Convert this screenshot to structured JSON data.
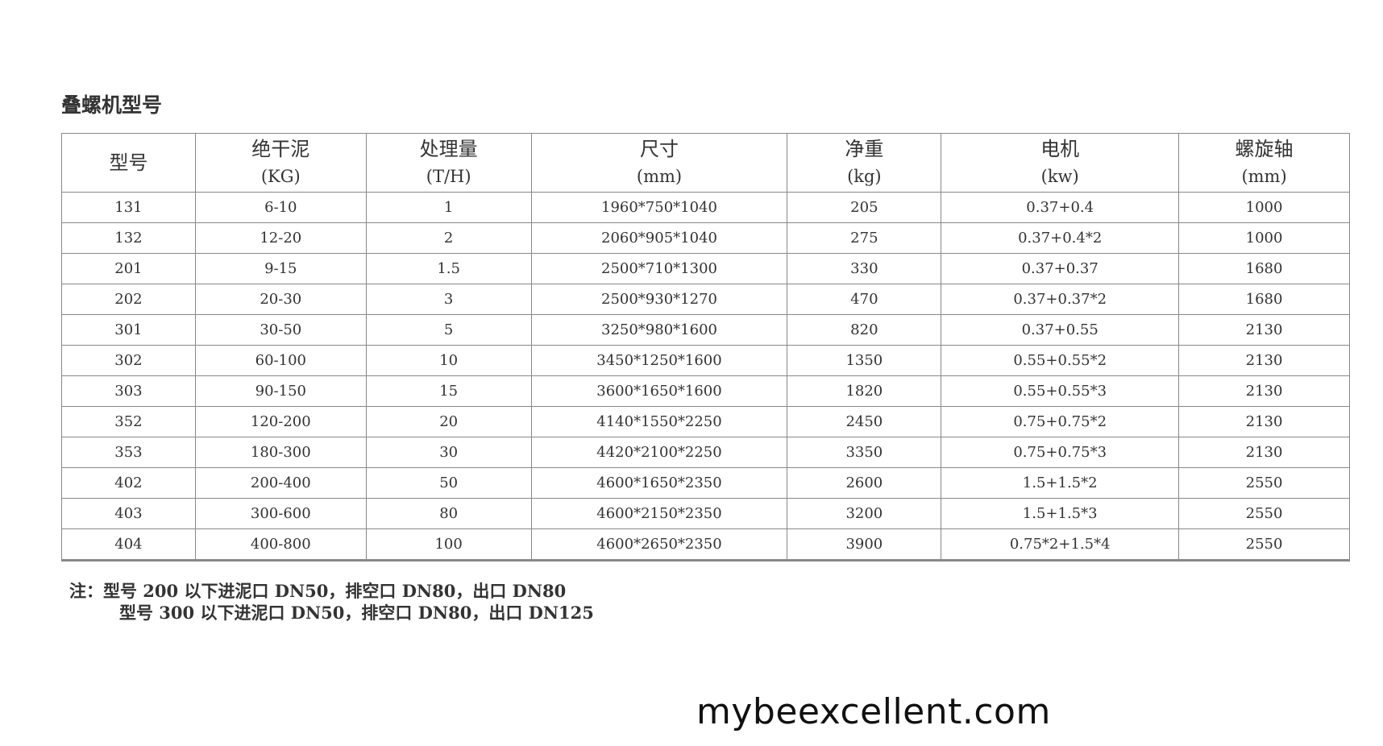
{
  "title": "叠螺机型号",
  "table": {
    "headers": [
      {
        "label": "型号",
        "unit": ""
      },
      {
        "label": "绝干泥",
        "unit": "(KG)"
      },
      {
        "label": "处理量",
        "unit": "(T/H)"
      },
      {
        "label": "尺寸",
        "unit": "(mm)"
      },
      {
        "label": "净重",
        "unit": "(kg)"
      },
      {
        "label": "电机",
        "unit": "(kw)"
      },
      {
        "label": "螺旋轴",
        "unit": "(mm)"
      }
    ],
    "rows": [
      [
        "131",
        "6-10",
        "1",
        "1960*750*1040",
        "205",
        "0.37+0.4",
        "1000"
      ],
      [
        "132",
        "12-20",
        "2",
        "2060*905*1040",
        "275",
        "0.37+0.4*2",
        "1000"
      ],
      [
        "201",
        "9-15",
        "1.5",
        "2500*710*1300",
        "330",
        "0.37+0.37",
        "1680"
      ],
      [
        "202",
        "20-30",
        "3",
        "2500*930*1270",
        "470",
        "0.37+0.37*2",
        "1680"
      ],
      [
        "301",
        "30-50",
        "5",
        "3250*980*1600",
        "820",
        "0.37+0.55",
        "2130"
      ],
      [
        "302",
        "60-100",
        "10",
        "3450*1250*1600",
        "1350",
        "0.55+0.55*2",
        "2130"
      ],
      [
        "303",
        "90-150",
        "15",
        "3600*1650*1600",
        "1820",
        "0.55+0.55*3",
        "2130"
      ],
      [
        "352",
        "120-200",
        "20",
        "4140*1550*2250",
        "2450",
        "0.75+0.75*2",
        "2130"
      ],
      [
        "353",
        "180-300",
        "30",
        "4420*2100*2250",
        "3350",
        "0.75+0.75*3",
        "2130"
      ],
      [
        "402",
        "200-400",
        "50",
        "4600*1650*2350",
        "2600",
        "1.5+1.5*2",
        "2550"
      ],
      [
        "403",
        "300-600",
        "80",
        "4600*2150*2350",
        "3200",
        "1.5+1.5*3",
        "2550"
      ],
      [
        "404",
        "400-800",
        "100",
        "4600*2650*2350",
        "3900",
        "0.75*2+1.5*4",
        "2550"
      ]
    ]
  },
  "notes": [
    "注：型号 200 以下进泥口 DN50，排空口 DN80，出口 DN80",
    "型号 300 以下进泥口 DN50，排空口 DN80，出口 DN125"
  ],
  "watermark": "mybeexcellent.com"
}
